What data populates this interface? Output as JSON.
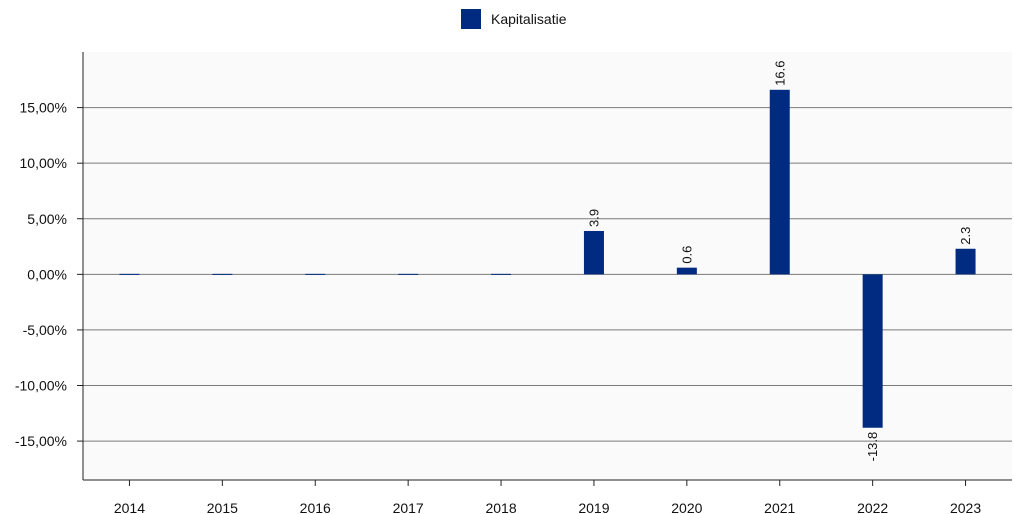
{
  "chart_data": {
    "type": "bar",
    "categories": [
      "2014",
      "2015",
      "2016",
      "2017",
      "2018",
      "2019",
      "2020",
      "2021",
      "2022",
      "2023"
    ],
    "series": [
      {
        "name": "Kapitalisatie",
        "values": [
          0,
          0,
          0,
          0,
          0,
          3.9,
          0.6,
          16.6,
          -13.8,
          2.3
        ],
        "labels": [
          "",
          "",
          "",
          "",
          "",
          "3.9",
          "0.6",
          "16.6",
          "-13.8",
          "2.3"
        ]
      }
    ],
    "y_ticks": [
      15,
      10,
      5,
      0,
      -5,
      -10,
      -15
    ],
    "y_tick_labels": [
      "15,00%",
      "10,00%",
      "5,00%",
      "0,00%",
      "-5,00%",
      "-10,00%",
      "-15,00%"
    ],
    "ylim": [
      -18.5,
      20
    ],
    "grid": true,
    "legend_position": "top-center",
    "colors": {
      "bar": "#002b80",
      "plot_background": "#fafafa",
      "grid": "#7a7a7a",
      "axis": "#222222"
    }
  }
}
